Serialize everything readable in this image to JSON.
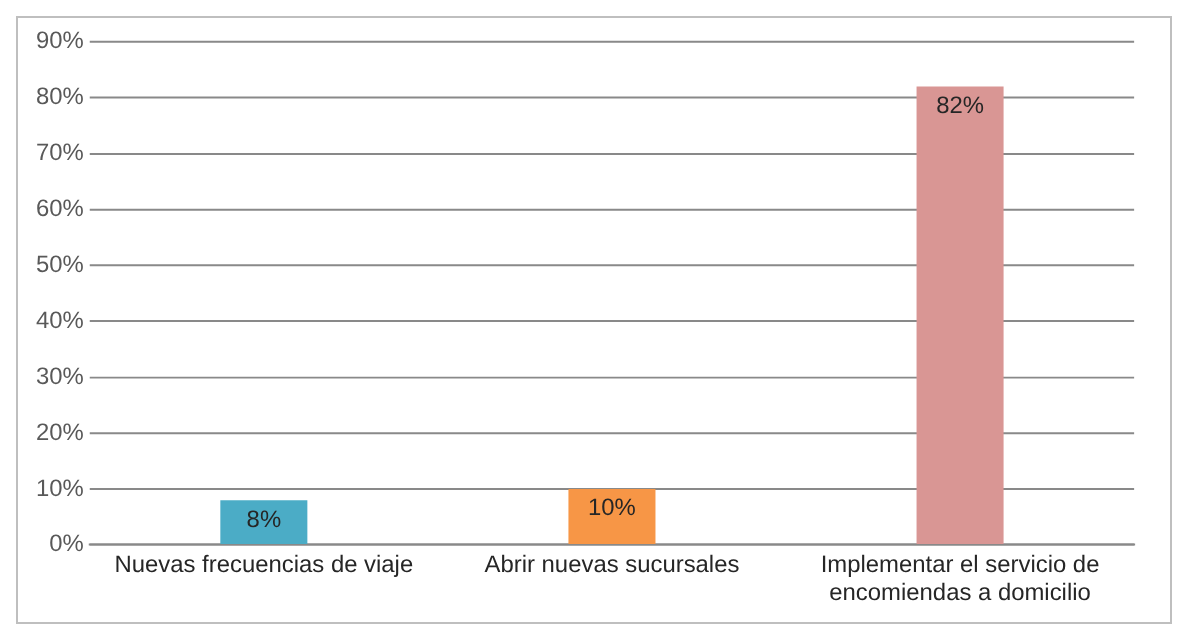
{
  "chart_data": {
    "type": "bar",
    "categories": [
      "Nuevas frecuencias de viaje",
      "Abrir nuevas sucursales",
      "Implementar el servicio de encomiendas a domicilio"
    ],
    "values": [
      8,
      10,
      82
    ],
    "colors": [
      "#4bacc6",
      "#f79646",
      "#d99694"
    ],
    "value_labels": [
      "8%",
      "10%",
      "82%"
    ],
    "ylim": [
      0,
      90
    ],
    "yticks": [
      {
        "value": 0,
        "label": "0%"
      },
      {
        "value": 10,
        "label": "10%"
      },
      {
        "value": 20,
        "label": "20%"
      },
      {
        "value": 30,
        "label": "30%"
      },
      {
        "value": 40,
        "label": "40%"
      },
      {
        "value": 50,
        "label": "50%"
      },
      {
        "value": 60,
        "label": "60%"
      },
      {
        "value": 70,
        "label": "70%"
      },
      {
        "value": 80,
        "label": "80%"
      },
      {
        "value": 90,
        "label": "90%"
      }
    ],
    "grid": "y",
    "legend": false
  }
}
